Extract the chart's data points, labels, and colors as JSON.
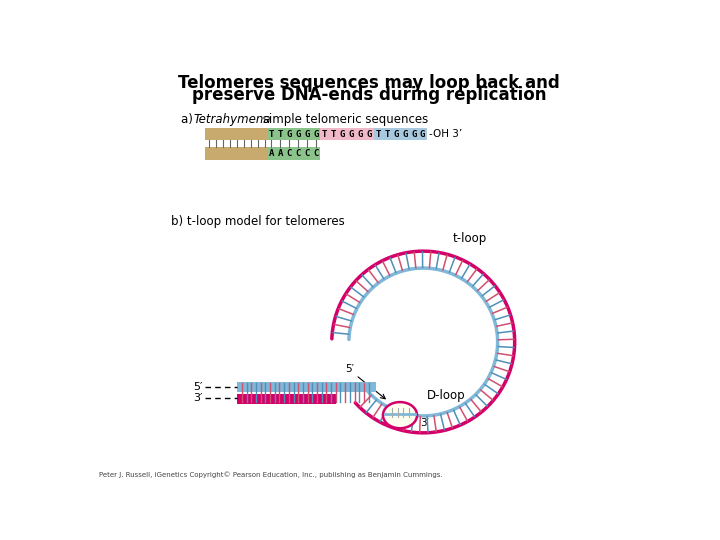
{
  "title_line1": "Telomeres sequences may loop back and",
  "title_line2": "preserve DNA-ends during replication",
  "title_fontsize": 12,
  "background_color": "#ffffff",
  "section_b_label": "b) t-loop model for telomeres",
  "seq1": "TTGGGGTTGGGGTTGGGG",
  "seq2": "AACCCC",
  "oh_label": "-OH 3’",
  "tloop_label": "t-loop",
  "dloop_label": "D-loop",
  "five_prime_inner": "5′",
  "five_prime_left": "5′",
  "three_prime_left": "3′",
  "three_prime_end": "3′",
  "color_tan": "#C8A96E",
  "color_green": "#8BC48B",
  "color_pink": "#F0B8C8",
  "color_blue_seq": "#A8C8E0",
  "color_magenta": "#D4006A",
  "color_lightblue": "#7FB8D8",
  "color_tick_mag": "#D05070",
  "color_tick_blue": "#5090B8",
  "footer": "Peter J. Russell, iGenetics Copyright© Pearson Education, Inc., publishing as Benjamin Cummings."
}
